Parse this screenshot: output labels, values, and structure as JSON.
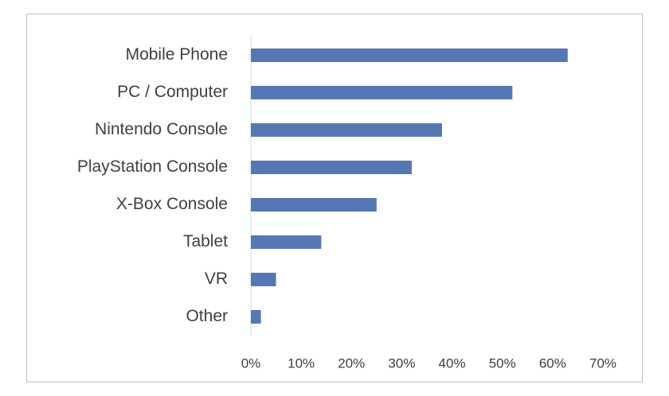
{
  "chart_data": {
    "type": "bar",
    "orientation": "horizontal",
    "categories": [
      "Mobile Phone",
      "PC / Computer",
      "Nintendo Console",
      "PlayStation Console",
      "X-Box Console",
      "Tablet",
      "VR",
      "Other"
    ],
    "values": [
      63,
      52,
      38,
      32,
      25,
      14,
      5,
      2
    ],
    "color": "#5578b4",
    "xlim": [
      0,
      70
    ],
    "xticks": [
      {
        "value": 0,
        "label": "0%"
      },
      {
        "value": 10,
        "label": "10%"
      },
      {
        "value": 20,
        "label": "20%"
      },
      {
        "value": 30,
        "label": "30%"
      },
      {
        "value": 40,
        "label": "40%"
      },
      {
        "value": 50,
        "label": "50%"
      },
      {
        "value": 60,
        "label": "60%"
      },
      {
        "value": 70,
        "label": "70%"
      }
    ],
    "grid": false
  }
}
